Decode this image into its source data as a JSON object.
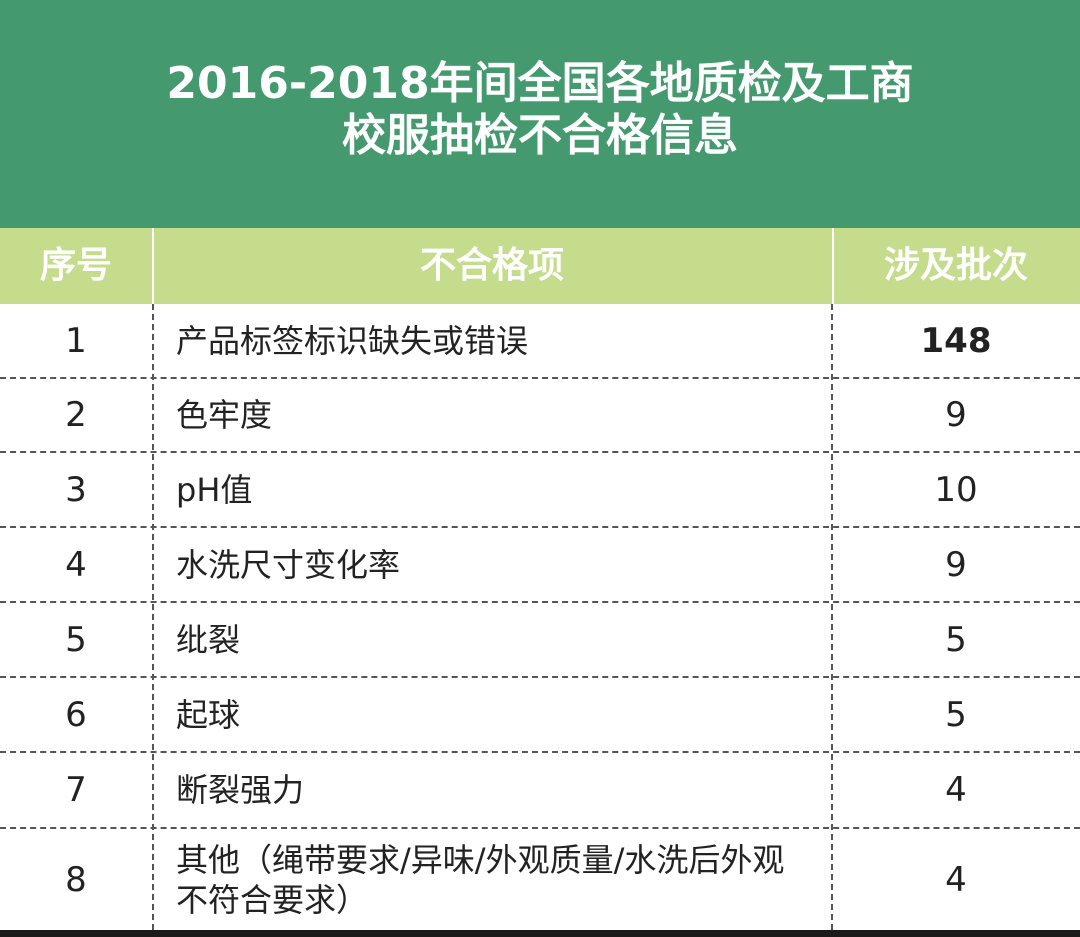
{
  "title": {
    "line1": "2016-2018年间全国各地质检及工商",
    "line2": "校服抽检不合格信息"
  },
  "header": {
    "col_no": "序号",
    "col_item": "不合格项",
    "col_batch": "涉及批次"
  },
  "rows": [
    {
      "no": "1",
      "item": "产品标签标识缺失或错误",
      "batch": "148"
    },
    {
      "no": "2",
      "item": "色牢度",
      "batch": "9"
    },
    {
      "no": "3",
      "item": "pH值",
      "batch": "10"
    },
    {
      "no": "4",
      "item": "水洗尺寸变化率",
      "batch": "9"
    },
    {
      "no": "5",
      "item": "纰裂",
      "batch": "5"
    },
    {
      "no": "6",
      "item": "起球",
      "batch": "5"
    },
    {
      "no": "7",
      "item": "断裂强力",
      "batch": "4"
    },
    {
      "no": "8",
      "item": "其他（绳带要求/异味/外观质量/水洗后外观不符合要求）",
      "batch": "4"
    }
  ],
  "colors": {
    "title_band": "#449a6e",
    "header_band": "#c4dc8c"
  }
}
